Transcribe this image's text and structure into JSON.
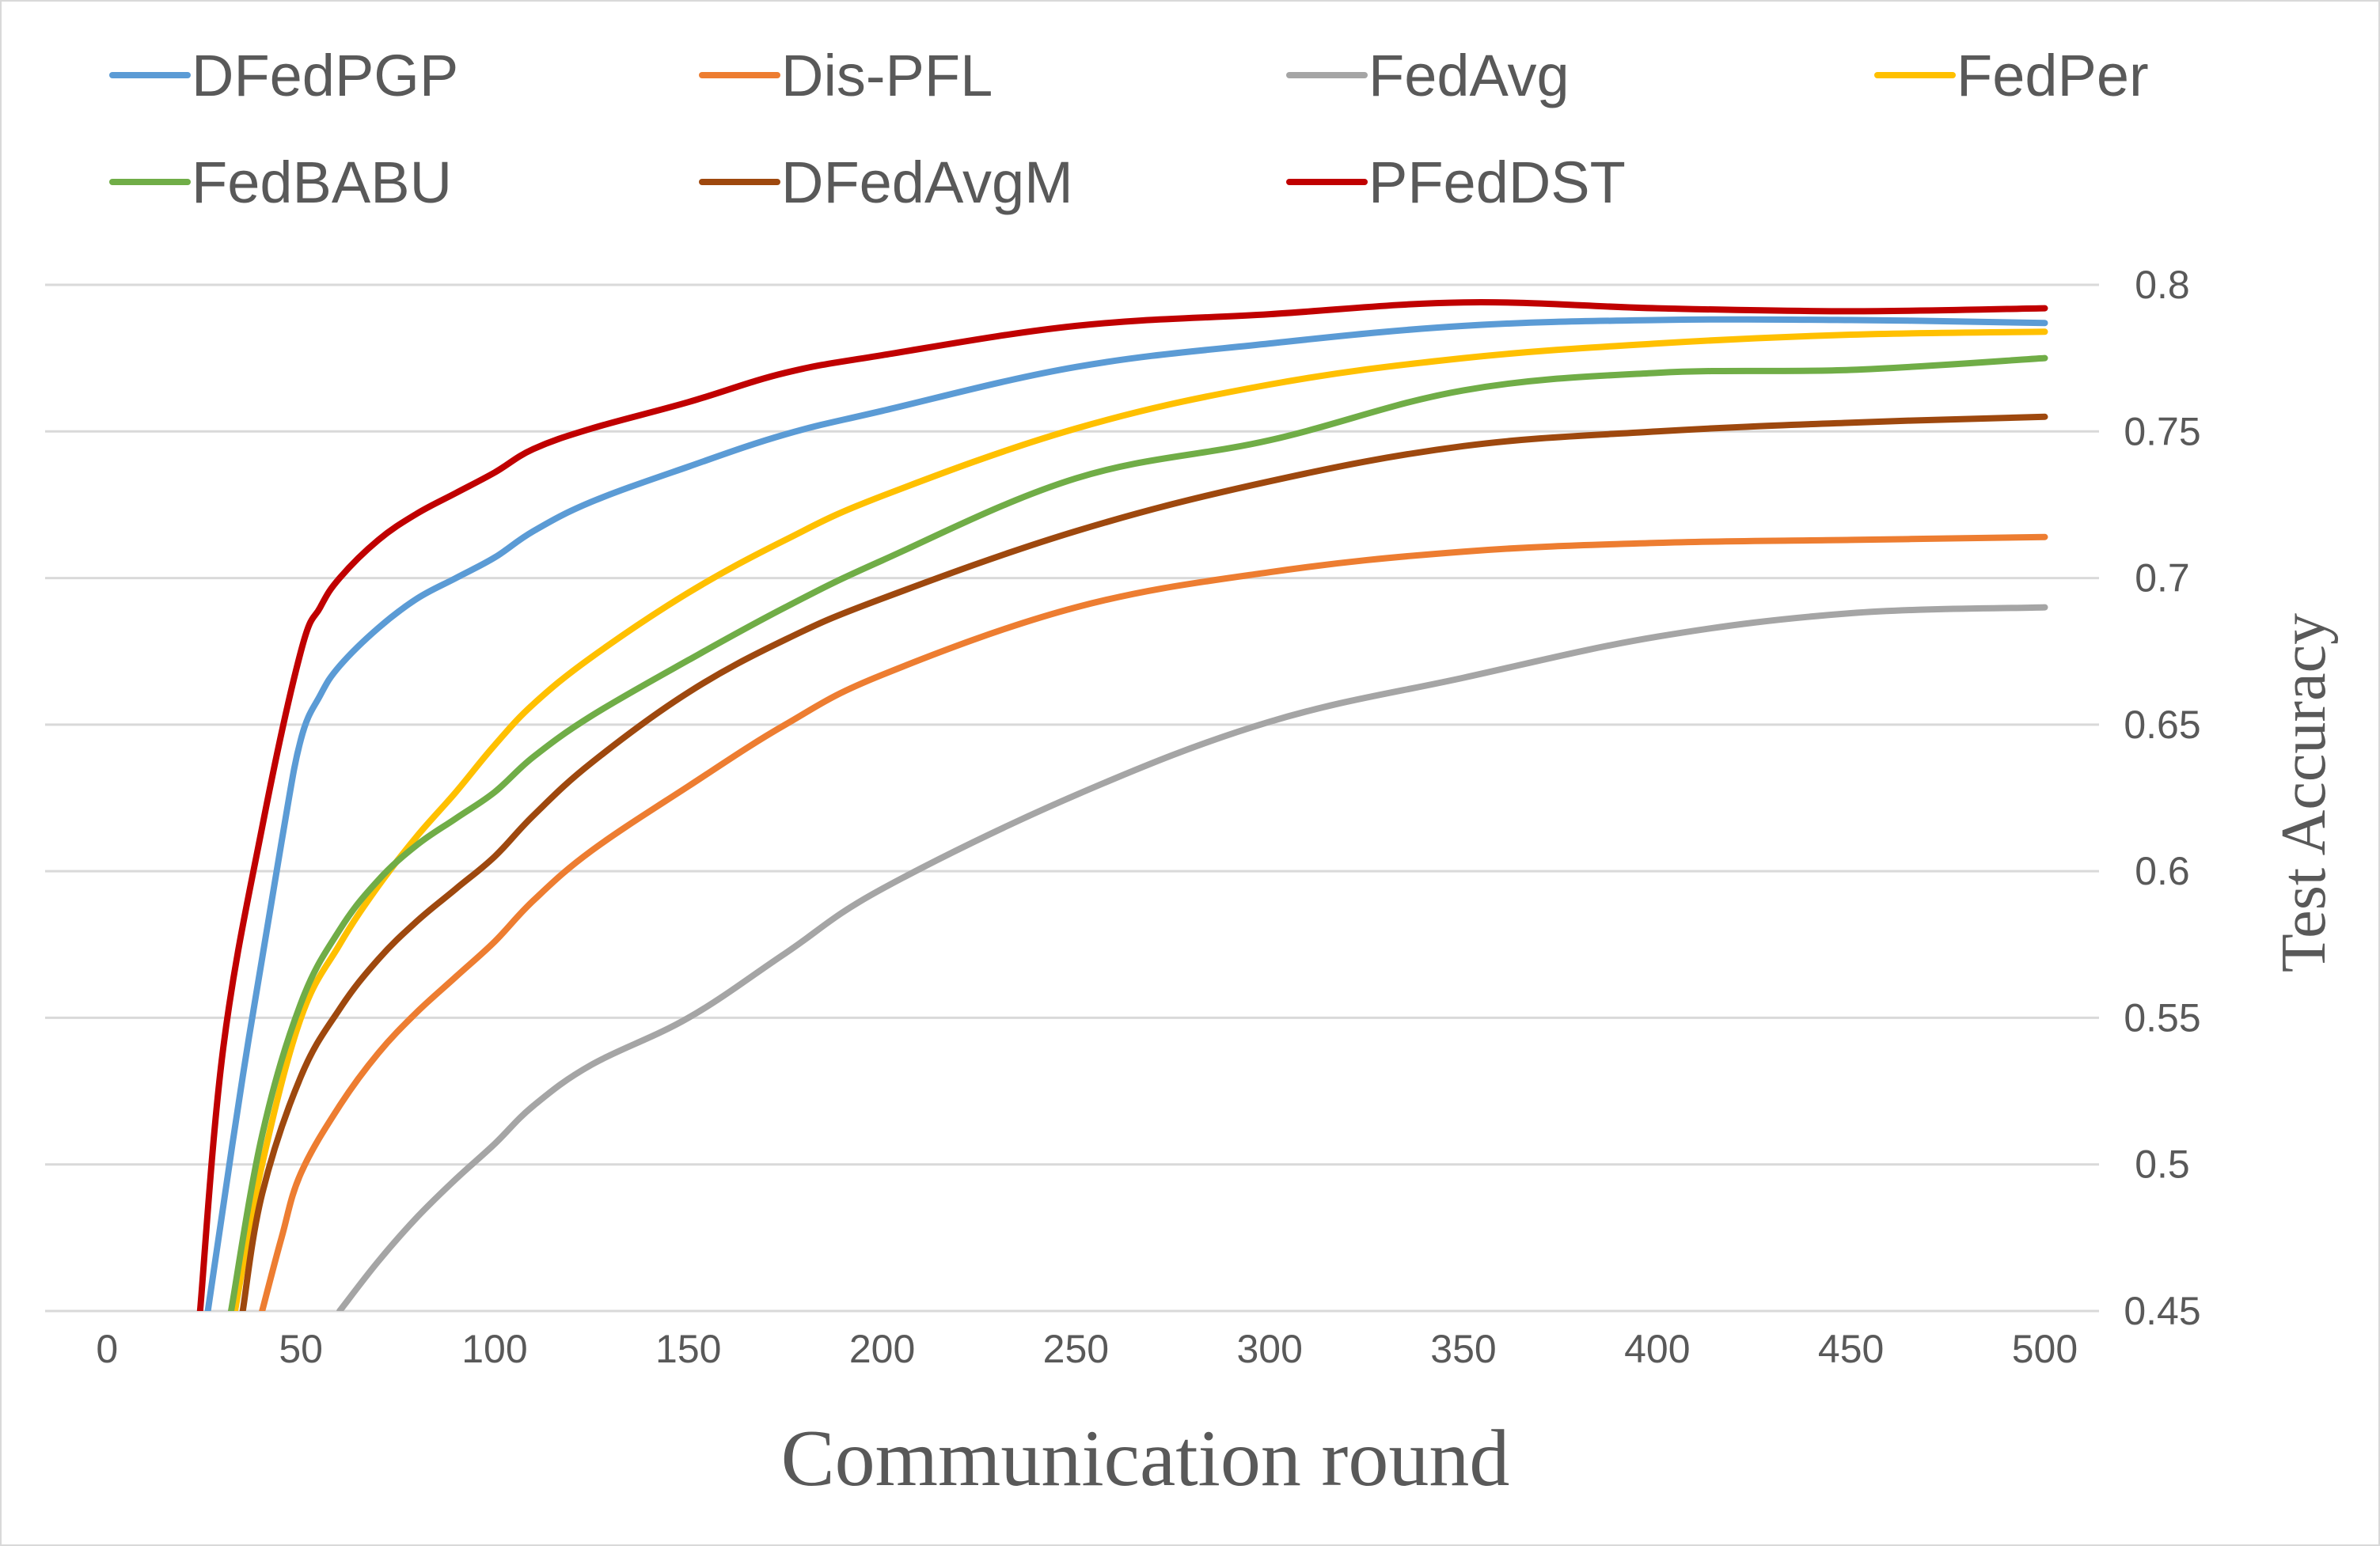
{
  "chart_data": {
    "type": "line",
    "title": "",
    "xlabel": "Communication round",
    "ylabel": "Test Accuracy",
    "xlim": [
      -16,
      514
    ],
    "ylim": [
      0.45,
      0.8
    ],
    "xticks": [
      "0",
      "50",
      "100",
      "150",
      "200",
      "250",
      "300",
      "350",
      "400",
      "450",
      "500"
    ],
    "yticks": [
      "0.8",
      "0.75",
      "0.7",
      "0.65",
      "0.6",
      "0.55",
      "0.5",
      "0.45"
    ],
    "y_axis_side": "right",
    "grid": "horizontal",
    "legend_position": "top",
    "series": [
      {
        "name": "DFedPGP",
        "color": "#5B9BD5",
        "x": [
          26,
          35,
          45,
          50,
          55,
          60,
          70,
          80,
          90,
          100,
          110,
          125,
          150,
          175,
          200,
          250,
          300,
          350,
          400,
          450,
          500
        ],
        "y": [
          0.45,
          0.53,
          0.61,
          0.645,
          0.66,
          0.67,
          0.683,
          0.693,
          0.7,
          0.707,
          0.716,
          0.726,
          0.738,
          0.749,
          0.757,
          0.772,
          0.78,
          0.786,
          0.788,
          0.788,
          0.787
        ]
      },
      {
        "name": "Dis-PFL",
        "color": "#ED7D31",
        "x": [
          40,
          45,
          50,
          60,
          70,
          80,
          90,
          100,
          110,
          125,
          150,
          175,
          200,
          250,
          300,
          350,
          400,
          450,
          500
        ],
        "y": [
          0.45,
          0.475,
          0.497,
          0.52,
          0.538,
          0.552,
          0.564,
          0.576,
          0.59,
          0.607,
          0.629,
          0.65,
          0.667,
          0.69,
          0.702,
          0.709,
          0.712,
          0.713,
          0.714
        ]
      },
      {
        "name": "FedAvg",
        "color": "#A5A5A5",
        "x": [
          60,
          70,
          80,
          90,
          100,
          110,
          125,
          150,
          175,
          200,
          250,
          300,
          350,
          400,
          450,
          500
        ],
        "y": [
          0.45,
          0.467,
          0.482,
          0.495,
          0.507,
          0.52,
          0.534,
          0.55,
          0.572,
          0.594,
          0.626,
          0.651,
          0.666,
          0.68,
          0.688,
          0.69
        ]
      },
      {
        "name": "FedPer",
        "color": "#FFC000",
        "x": [
          33,
          40,
          50,
          60,
          70,
          80,
          90,
          100,
          110,
          125,
          150,
          175,
          200,
          250,
          300,
          350,
          400,
          450,
          500
        ],
        "y": [
          0.45,
          0.5,
          0.55,
          0.575,
          0.595,
          0.612,
          0.627,
          0.643,
          0.657,
          0.673,
          0.695,
          0.713,
          0.728,
          0.751,
          0.766,
          0.775,
          0.78,
          0.783,
          0.784
        ]
      },
      {
        "name": "FedBABU",
        "color": "#70AD47",
        "x": [
          32,
          40,
          50,
          60,
          70,
          80,
          90,
          100,
          110,
          125,
          150,
          175,
          200,
          250,
          300,
          350,
          400,
          450,
          500
        ],
        "y": [
          0.45,
          0.51,
          0.555,
          0.58,
          0.597,
          0.609,
          0.618,
          0.627,
          0.639,
          0.653,
          0.672,
          0.69,
          0.706,
          0.734,
          0.747,
          0.764,
          0.77,
          0.771,
          0.775
        ]
      },
      {
        "name": "DFedAvgM",
        "color": "#9E480E",
        "x": [
          35,
          40,
          50,
          60,
          70,
          80,
          90,
          100,
          110,
          125,
          150,
          175,
          200,
          250,
          300,
          350,
          400,
          450,
          500
        ],
        "y": [
          0.45,
          0.49,
          0.53,
          0.553,
          0.57,
          0.583,
          0.594,
          0.605,
          0.619,
          0.637,
          0.661,
          0.679,
          0.693,
          0.716,
          0.733,
          0.745,
          0.75,
          0.753,
          0.755
        ]
      },
      {
        "name": "PFedDST",
        "color": "#C00000",
        "x": [
          24,
          30,
          40,
          50,
          55,
          60,
          70,
          80,
          90,
          100,
          110,
          125,
          150,
          175,
          200,
          250,
          300,
          350,
          400,
          450,
          500
        ],
        "y": [
          0.45,
          0.54,
          0.615,
          0.675,
          0.69,
          0.7,
          0.713,
          0.722,
          0.729,
          0.736,
          0.744,
          0.751,
          0.76,
          0.77,
          0.776,
          0.786,
          0.79,
          0.794,
          0.792,
          0.791,
          0.792
        ]
      }
    ]
  }
}
